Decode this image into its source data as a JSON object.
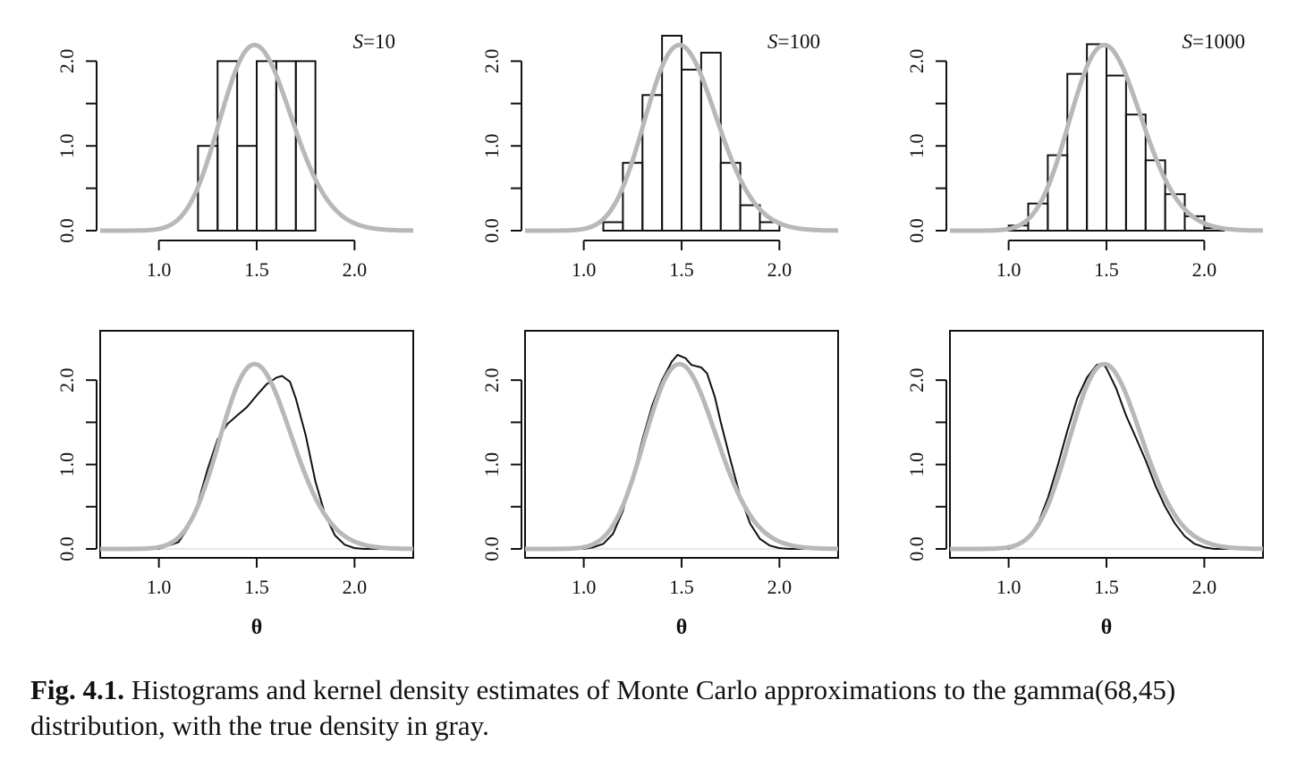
{
  "caption": {
    "label": "Fig. 4.1.",
    "text": "Histograms and kernel density estimates of Monte Carlo approximations to the gamma(68,45) distribution, with the true density in gray."
  },
  "colors": {
    "true_density": "#b8b8b8",
    "estimate": "#111111",
    "bars": "#111111"
  },
  "chart_data": [
    {
      "type": "bar",
      "label": "S=10",
      "label_italic": "S",
      "label_rest": "=10",
      "xlim": [
        0.7,
        2.3
      ],
      "ylim": [
        0,
        2.5
      ],
      "xticks": [
        1.0,
        1.5,
        2.0
      ],
      "xtick_labels": [
        "1.0",
        "1.5",
        "2.0"
      ],
      "yticks": [
        0,
        0.5,
        1.0,
        1.5,
        2.0
      ],
      "ytick_labels": [
        "0.0",
        "",
        "1.0",
        "",
        "2.0"
      ],
      "bin_width": 0.1,
      "bins": [
        {
          "x": 1.2,
          "y": 1.0
        },
        {
          "x": 1.3,
          "y": 2.0
        },
        {
          "x": 1.4,
          "y": 1.0
        },
        {
          "x": 1.5,
          "y": 2.0
        },
        {
          "x": 1.6,
          "y": 2.0
        },
        {
          "x": 1.7,
          "y": 2.0
        }
      ]
    },
    {
      "type": "bar",
      "label": "S=100",
      "label_italic": "S",
      "label_rest": "=100",
      "xlim": [
        0.7,
        2.3
      ],
      "ylim": [
        0,
        2.5
      ],
      "xticks": [
        1.0,
        1.5,
        2.0
      ],
      "xtick_labels": [
        "1.0",
        "1.5",
        "2.0"
      ],
      "yticks": [
        0,
        0.5,
        1.0,
        1.5,
        2.0
      ],
      "ytick_labels": [
        "0.0",
        "",
        "1.0",
        "",
        "2.0"
      ],
      "bin_width": 0.1,
      "bins": [
        {
          "x": 1.1,
          "y": 0.1
        },
        {
          "x": 1.2,
          "y": 0.8
        },
        {
          "x": 1.3,
          "y": 1.6
        },
        {
          "x": 1.4,
          "y": 2.3
        },
        {
          "x": 1.5,
          "y": 1.9
        },
        {
          "x": 1.6,
          "y": 2.1
        },
        {
          "x": 1.7,
          "y": 0.8
        },
        {
          "x": 1.8,
          "y": 0.3
        },
        {
          "x": 1.9,
          "y": 0.1
        }
      ]
    },
    {
      "type": "bar",
      "label": "S=1000",
      "label_italic": "S",
      "label_rest": "=1000",
      "xlim": [
        0.7,
        2.3
      ],
      "ylim": [
        0,
        2.5
      ],
      "xticks": [
        1.0,
        1.5,
        2.0
      ],
      "xtick_labels": [
        "1.0",
        "1.5",
        "2.0"
      ],
      "yticks": [
        0,
        0.5,
        1.0,
        1.5,
        2.0
      ],
      "ytick_labels": [
        "0.0",
        "",
        "1.0",
        "",
        "2.0"
      ],
      "bin_width": 0.1,
      "bins": [
        {
          "x": 1.0,
          "y": 0.06
        },
        {
          "x": 1.1,
          "y": 0.32
        },
        {
          "x": 1.2,
          "y": 0.89
        },
        {
          "x": 1.3,
          "y": 1.85
        },
        {
          "x": 1.4,
          "y": 2.2
        },
        {
          "x": 1.5,
          "y": 1.83
        },
        {
          "x": 1.6,
          "y": 1.37
        },
        {
          "x": 1.7,
          "y": 0.83
        },
        {
          "x": 1.8,
          "y": 0.43
        },
        {
          "x": 1.9,
          "y": 0.17
        },
        {
          "x": 2.0,
          "y": 0.03
        }
      ]
    },
    {
      "type": "line",
      "xlabel": "θ",
      "xlim": [
        0.7,
        2.3
      ],
      "ylim": [
        0,
        2.5
      ],
      "xticks": [
        1.0,
        1.5,
        2.0
      ],
      "xtick_labels": [
        "1.0",
        "1.5",
        "2.0"
      ],
      "yticks": [
        0,
        0.5,
        1.0,
        1.5,
        2.0
      ],
      "ytick_labels": [
        "0.0",
        "",
        "1.0",
        "",
        "2.0"
      ],
      "kde": [
        [
          1.0,
          0.0
        ],
        [
          1.1,
          0.08
        ],
        [
          1.15,
          0.25
        ],
        [
          1.2,
          0.55
        ],
        [
          1.25,
          0.95
        ],
        [
          1.3,
          1.3
        ],
        [
          1.35,
          1.48
        ],
        [
          1.4,
          1.58
        ],
        [
          1.45,
          1.68
        ],
        [
          1.5,
          1.82
        ],
        [
          1.55,
          1.95
        ],
        [
          1.6,
          2.03
        ],
        [
          1.63,
          2.05
        ],
        [
          1.67,
          1.98
        ],
        [
          1.7,
          1.78
        ],
        [
          1.75,
          1.35
        ],
        [
          1.8,
          0.8
        ],
        [
          1.85,
          0.4
        ],
        [
          1.9,
          0.16
        ],
        [
          1.95,
          0.05
        ],
        [
          2.0,
          0.01
        ],
        [
          2.05,
          0.0
        ]
      ]
    },
    {
      "type": "line",
      "xlabel": "θ",
      "xlim": [
        0.7,
        2.3
      ],
      "ylim": [
        0,
        2.5
      ],
      "xticks": [
        1.0,
        1.5,
        2.0
      ],
      "xtick_labels": [
        "1.0",
        "1.5",
        "2.0"
      ],
      "yticks": [
        0,
        0.5,
        1.0,
        1.5,
        2.0
      ],
      "ytick_labels": [
        "0.0",
        "",
        "1.0",
        "",
        "2.0"
      ],
      "kde": [
        [
          1.0,
          0.0
        ],
        [
          1.05,
          0.02
        ],
        [
          1.1,
          0.06
        ],
        [
          1.15,
          0.18
        ],
        [
          1.2,
          0.45
        ],
        [
          1.25,
          0.85
        ],
        [
          1.3,
          1.3
        ],
        [
          1.35,
          1.7
        ],
        [
          1.4,
          2.0
        ],
        [
          1.45,
          2.22
        ],
        [
          1.48,
          2.3
        ],
        [
          1.52,
          2.26
        ],
        [
          1.55,
          2.18
        ],
        [
          1.6,
          2.15
        ],
        [
          1.63,
          2.08
        ],
        [
          1.67,
          1.8
        ],
        [
          1.7,
          1.5
        ],
        [
          1.75,
          1.05
        ],
        [
          1.8,
          0.62
        ],
        [
          1.85,
          0.3
        ],
        [
          1.9,
          0.12
        ],
        [
          1.95,
          0.04
        ],
        [
          2.0,
          0.01
        ],
        [
          2.05,
          0.0
        ]
      ]
    },
    {
      "type": "line",
      "xlabel": "θ",
      "xlim": [
        0.7,
        2.3
      ],
      "ylim": [
        0,
        2.5
      ],
      "xticks": [
        1.0,
        1.5,
        2.0
      ],
      "xtick_labels": [
        "1.0",
        "1.5",
        "2.0"
      ],
      "yticks": [
        0,
        0.5,
        1.0,
        1.5,
        2.0
      ],
      "ytick_labels": [
        "0.0",
        "",
        "1.0",
        "",
        "2.0"
      ],
      "kde": [
        [
          1.0,
          0.0
        ],
        [
          1.05,
          0.04
        ],
        [
          1.1,
          0.12
        ],
        [
          1.15,
          0.3
        ],
        [
          1.2,
          0.6
        ],
        [
          1.25,
          0.98
        ],
        [
          1.3,
          1.4
        ],
        [
          1.35,
          1.78
        ],
        [
          1.4,
          2.03
        ],
        [
          1.45,
          2.18
        ],
        [
          1.48,
          2.2
        ],
        [
          1.5,
          2.14
        ],
        [
          1.55,
          1.9
        ],
        [
          1.6,
          1.58
        ],
        [
          1.65,
          1.32
        ],
        [
          1.7,
          1.05
        ],
        [
          1.75,
          0.75
        ],
        [
          1.8,
          0.5
        ],
        [
          1.85,
          0.3
        ],
        [
          1.9,
          0.15
        ],
        [
          1.95,
          0.06
        ],
        [
          2.0,
          0.02
        ],
        [
          2.05,
          0.0
        ]
      ]
    }
  ]
}
